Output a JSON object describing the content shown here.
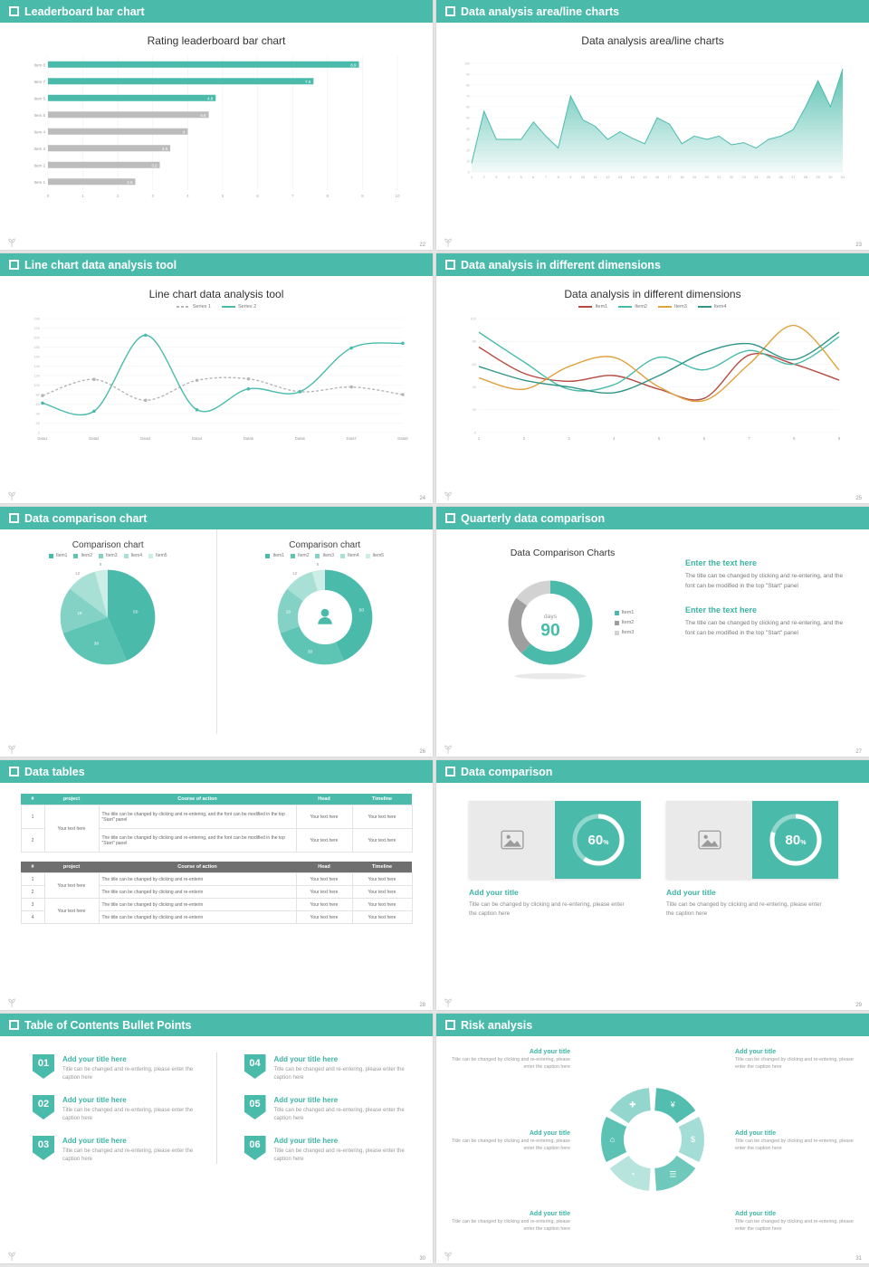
{
  "colors": {
    "accent": "#4ABBAB",
    "header_text": "#ffffff",
    "bar_gray": "#bcbcbc"
  },
  "slides": [
    {
      "header": "Leaderboard bar chart",
      "page": "22"
    },
    {
      "header": "Data analysis area/line charts",
      "page": "23"
    },
    {
      "header": "Line chart data analysis tool",
      "page": "24"
    },
    {
      "header": "Data analysis in different dimensions",
      "page": "25"
    },
    {
      "header": "Data comparison chart",
      "page": "26"
    },
    {
      "header": "Quarterly data comparison",
      "page": "27"
    },
    {
      "header": "Data tables",
      "page": "28"
    },
    {
      "header": "Data comparison",
      "page": "29"
    },
    {
      "header": "Table of Contents Bullet Points",
      "page": "30"
    },
    {
      "header": "Risk analysis",
      "page": "31"
    }
  ],
  "chart_data": [
    {
      "slide": 22,
      "type": "bar",
      "orientation": "horizontal",
      "title": "Rating leaderboard bar chart",
      "categories": [
        "Item 1",
        "Item 2",
        "Item 3",
        "Item 4",
        "Item 5",
        "Item 6",
        "Item 7",
        "Item 8"
      ],
      "values": [
        2.5,
        3.2,
        3.5,
        4,
        4.6,
        4.8,
        7.6,
        8.9
      ],
      "xlim": [
        0,
        10
      ],
      "highlight_top": 3,
      "highlight_color": "#4ABBAB",
      "bar_color": "#bcbcbc"
    },
    {
      "slide": 23,
      "type": "area",
      "title": "Data analysis area/line charts",
      "x": [
        1,
        2,
        3,
        4,
        5,
        6,
        7,
        8,
        9,
        10,
        11,
        12,
        13,
        14,
        15,
        16,
        17,
        18,
        19,
        20,
        21,
        22,
        23,
        24,
        25,
        26,
        27,
        28,
        29,
        30,
        31
      ],
      "values": [
        8,
        56,
        30,
        30,
        30,
        46,
        33,
        22,
        70,
        48,
        42,
        30,
        37,
        31,
        26,
        50,
        44,
        26,
        33,
        30,
        33,
        25,
        27,
        22,
        30,
        33,
        39,
        60,
        84,
        60,
        95
      ],
      "ylim": [
        0,
        100
      ],
      "ystep": 10,
      "color": "#4ABBAB"
    },
    {
      "slide": 24,
      "type": "line",
      "title": "Line chart data analysis tool",
      "categories": [
        "Data1",
        "Data2",
        "Data3",
        "Data4",
        "Data5",
        "Data6",
        "Data7",
        "Data8"
      ],
      "ylim": [
        0,
        240
      ],
      "ystep": 20,
      "smooth": true,
      "series": [
        {
          "name": "Series 1",
          "color": "#b5b5b5",
          "dashed": true,
          "markers": true,
          "values": [
            78,
            112,
            68,
            110,
            113,
            86,
            96,
            80
          ]
        },
        {
          "name": "Series 2",
          "color": "#4ABBAB",
          "dashed": false,
          "markers": true,
          "values": [
            62,
            45,
            205,
            48,
            92,
            86,
            178,
            188
          ]
        }
      ]
    },
    {
      "slide": 25,
      "type": "line",
      "title": "Data analysis in different dimensions",
      "x": [
        1,
        2,
        3,
        4,
        5,
        6,
        7,
        8,
        9
      ],
      "ylim": [
        0,
        100
      ],
      "ystep": 20,
      "smooth": true,
      "series": [
        {
          "name": "Item1",
          "color": "#b5493f",
          "values": [
            75,
            52,
            45,
            50,
            38,
            30,
            68,
            60,
            46
          ]
        },
        {
          "name": "Item2",
          "color": "#4ABBAB",
          "values": [
            88,
            62,
            38,
            42,
            66,
            55,
            72,
            60,
            84
          ]
        },
        {
          "name": "Item3",
          "color": "#e0a23c",
          "values": [
            48,
            38,
            58,
            66,
            40,
            28,
            60,
            94,
            55
          ]
        },
        {
          "name": "Item4",
          "color": "#2f9688",
          "values": [
            58,
            46,
            40,
            35,
            50,
            70,
            78,
            64,
            88
          ]
        }
      ]
    },
    {
      "slide": 26,
      "type": "pie",
      "title": "Comparison chart",
      "labels": [
        "Item1",
        "Item2",
        "Item3",
        "Item4",
        "Item5"
      ],
      "values": [
        50,
        30,
        18,
        12,
        5
      ],
      "colors": [
        "#4ABBAB",
        "#5ec5b5",
        "#84d2c6",
        "#a9e0d6",
        "#cdede7"
      ],
      "r": 54
    },
    {
      "slide": 26,
      "type": "donut",
      "title": "Comparison chart",
      "labels": [
        "Item1",
        "Item2",
        "Item3",
        "Item4",
        "Item5"
      ],
      "values": [
        50,
        30,
        18,
        12,
        5
      ],
      "colors": [
        "#4ABBAB",
        "#5ec5b5",
        "#84d2c6",
        "#a9e0d6",
        "#cdede7"
      ],
      "r": 54,
      "inner": 31,
      "person": true
    },
    {
      "slide": 27,
      "type": "donut",
      "title": "Data Comparison Charts",
      "labels": [
        "Item1",
        "Item2",
        "Item3"
      ],
      "values": [
        62,
        23,
        15
      ],
      "colors": [
        "#4ABBAB",
        "#9e9e9e",
        "#d2d2d2"
      ],
      "r": 48,
      "inner": 33,
      "center": [
        "days",
        "90"
      ],
      "shadow": true,
      "show_labels": false
    },
    {
      "slide": 29,
      "type": "progress",
      "value": 60,
      "suffix": "%"
    },
    {
      "slide": 29,
      "type": "progress",
      "value": 80,
      "suffix": "%"
    },
    {
      "slide": 31,
      "type": "ring",
      "color": "#4ABBAB",
      "opacities": [
        0.95,
        0.5,
        0.8,
        0.4,
        0.9,
        0.6
      ],
      "icons": [
        "¥",
        "$",
        "☰",
        "◔",
        "⌂",
        "✚"
      ],
      "icon_names": [
        "yen-money-bag-icon",
        "coins-icon",
        "list-icon",
        "pie-chart-icon",
        "building-icon",
        "plus-icon"
      ]
    }
  ],
  "s27": {
    "blocks": [
      {
        "heading": "Enter the text here",
        "body": "The title can be changed by clicking and re-entering, and the font can be modified in the top \"Start\" panel"
      },
      {
        "heading": "Enter the text here",
        "body": "The title can be changed by clicking and re-entering, and the font can be modified in the top \"Start\" panel"
      }
    ]
  },
  "tables": {
    "columns": [
      "#",
      "project",
      "Course of action",
      "Head",
      "Timeline"
    ],
    "t1": {
      "nums": [
        "1",
        "2"
      ],
      "project": "Your text here",
      "course": "The title can be changed by clicking and re-entering, and the font can be modified in the top \"Start\" panel",
      "head": "Your text here",
      "timeline": "Your text here"
    },
    "t2": {
      "nums": [
        "1",
        "2",
        "3",
        "4"
      ],
      "project": "Your text here",
      "course": "The title can be changed by clicking and re-enterin",
      "head": "Your text here",
      "timeline": "Your text here"
    }
  },
  "cards": {
    "items": [
      {
        "title": "Add your title",
        "caption": "Title can be changed by clicking and re-entering, please enter the caption here"
      },
      {
        "title": "Add your title",
        "caption": "Title can be changed by clicking and re-entering, please enter the caption here"
      }
    ]
  },
  "toc": {
    "items": [
      {
        "num": "01",
        "title": "Add your title here",
        "caption": "Title can be changed and re-entering, please enter the caption here"
      },
      {
        "num": "02",
        "title": "Add your title here",
        "caption": "Title can be changed and re-entering, please enter the caption here"
      },
      {
        "num": "03",
        "title": "Add your title here",
        "caption": "Title can be changed and re-entering, please enter the caption here"
      },
      {
        "num": "04",
        "title": "Add your title here",
        "caption": "Title can be changed and re-entering, please enter the caption here"
      },
      {
        "num": "05",
        "title": "Add your title here",
        "caption": "Title can be changed and re-entering, please enter the caption here"
      },
      {
        "num": "06",
        "title": "Add your title here",
        "caption": "Title can be changed and re-entering, please enter the caption here"
      }
    ]
  },
  "risk": {
    "left": [
      {
        "title": "Add your title",
        "caption": "Title can be changed by clicking and re-entering, please enter the caption here"
      },
      {
        "title": "Add your title",
        "caption": "Title can be changed by clicking and re-entering, please enter the caption here"
      },
      {
        "title": "Add your title",
        "caption": "Title can be changed by clicking and re-entering, please enter the caption here"
      }
    ],
    "right": [
      {
        "title": "Add your title",
        "caption": "Title can be changed by clicking and re-entering, please enter the caption here"
      },
      {
        "title": "Add your title",
        "caption": "Title can be changed by clicking and re-entering, please enter the caption here"
      },
      {
        "title": "Add your title",
        "caption": "Title can be changed by clicking and re-entering, please enter the caption here"
      }
    ]
  }
}
